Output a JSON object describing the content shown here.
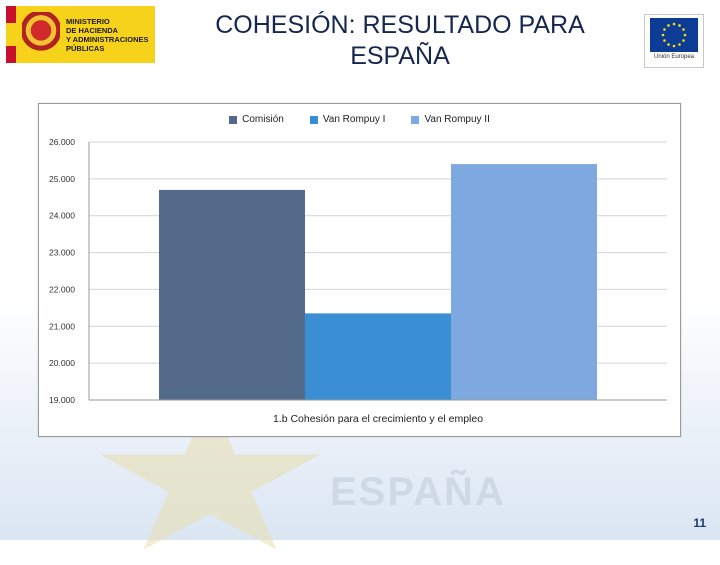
{
  "header": {
    "title_line1": "COHESIÓN: RESULTADO PARA",
    "title_line2": "ESPAÑA",
    "ministry_lines": [
      "MINISTERIO",
      "DE HACIENDA",
      "Y ADMINISTRACIONES",
      "PÚBLICAS"
    ],
    "eu_label": "Unión Europea"
  },
  "background": {
    "word": "ESPAÑA"
  },
  "page_number": "11",
  "colors": {
    "Comisión": "#546a8b",
    "Van Rompuy I": "#3a8fd4",
    "Van Rompuy II": "#7da9e0",
    "title": "#15274f",
    "eu_blue": "#0c3c96",
    "eu_star": "#ffdd00"
  },
  "chart_data": {
    "type": "bar",
    "categories": [
      "1.b Cohesión para el crecimiento y el empleo"
    ],
    "series": [
      {
        "name": "Comisión",
        "values": [
          24700
        ]
      },
      {
        "name": "Van Rompuy I",
        "values": [
          21350
        ]
      },
      {
        "name": "Van Rompuy II",
        "values": [
          25400
        ]
      }
    ],
    "title": "",
    "xlabel": "",
    "ylabel": "",
    "ylim": [
      19000,
      26000
    ],
    "yticks": [
      19000,
      20000,
      21000,
      22000,
      23000,
      24000,
      25000,
      26000
    ],
    "ytick_labels": [
      "19.000",
      "20.000",
      "21.000",
      "22.000",
      "23.000",
      "24.000",
      "25.000",
      "26.000"
    ],
    "grid": true,
    "legend_position": "top"
  }
}
